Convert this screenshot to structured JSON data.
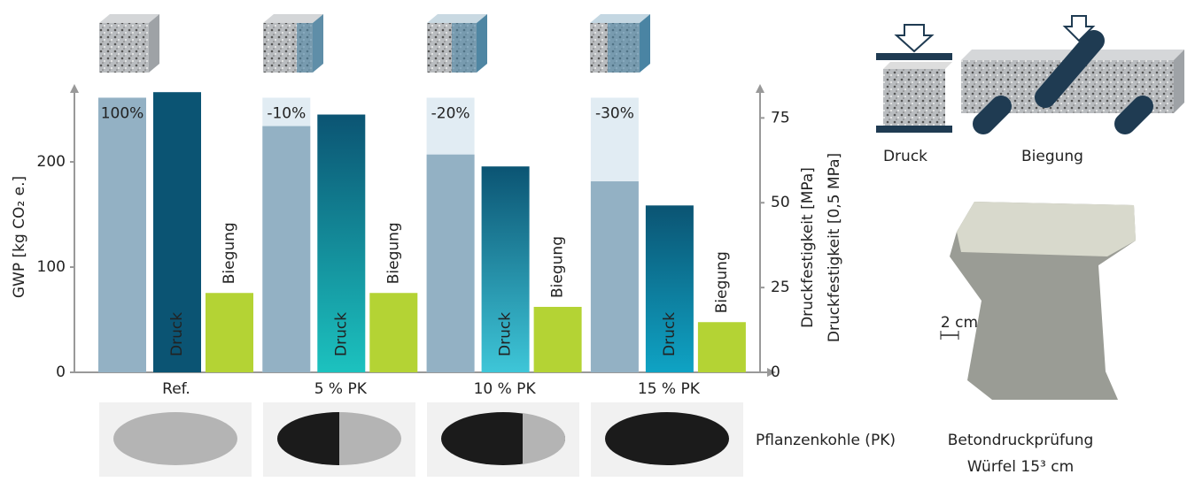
{
  "chart_data": {
    "type": "bar",
    "categories": [
      "Ref.",
      "5 % PK",
      "10 % PK",
      "15 % PK"
    ],
    "ylabel": "GWP [kg CO₂ e.]",
    "ylim": [
      0,
      274
    ],
    "yticks": [
      0,
      100,
      200
    ],
    "y2labels": [
      "Druckfestigkeit [MPa]",
      "Druckfestigkeit [0,5 MPa]"
    ],
    "y2lim": [
      0,
      85
    ],
    "y2ticks": [
      0,
      25,
      50,
      75
    ],
    "gwp": {
      "color": "#93b1c4",
      "reference_color": "#e1ecf3",
      "reference": [
        261,
        261,
        261,
        261
      ],
      "values": [
        261,
        234,
        207,
        181.5
      ],
      "labels": [
        "100%",
        "-10%",
        "-20%",
        "-30%"
      ]
    },
    "series": [
      {
        "name": "Druck",
        "color": "#0b5473",
        "axis": "y2",
        "values": [
          82.6,
          76,
          60.7,
          49.2
        ]
      },
      {
        "name": "Biegung",
        "color": "#b4d334",
        "axis": "y2",
        "values": [
          23.4,
          23.4,
          19.3,
          14.8
        ]
      }
    ]
  },
  "illustration": {
    "load_cases": [
      "Druck",
      "Biegung"
    ],
    "scale": "2 cm",
    "biochar": "Pflanzenkohle (PK)",
    "test": [
      "Betondruckprüfung",
      "Würfel 15³ cm"
    ]
  }
}
